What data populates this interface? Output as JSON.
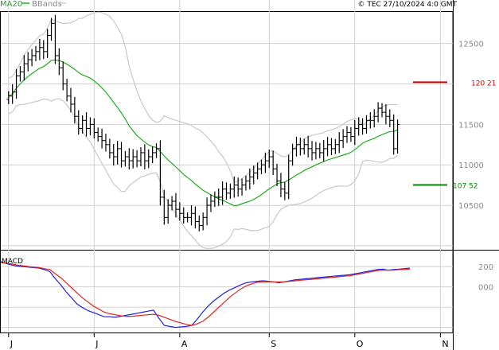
{
  "header": {
    "ma_label": "MA20",
    "bbands_label": "BBands",
    "copyright": "© TEC 27/10/2024 4:0 GMT"
  },
  "macd_label": "MACD",
  "colors": {
    "ma": "#22aa22",
    "bbands": "#c8c8c8",
    "price_bars": "#000000",
    "macd_line": "#2222dd",
    "signal_line": "#dd2222",
    "resistance": "#cc0000",
    "support": "#008800"
  },
  "chart_data": [
    {
      "type": "ohlc",
      "y_ticks": [
        10500,
        11000,
        11500,
        12500
      ],
      "y_tick_labels": [
        "10500",
        "11000",
        "11500",
        "12500"
      ],
      "x_month_labels": [
        "J",
        "J",
        "A",
        "S",
        "O",
        "N"
      ],
      "x_month_positions": [
        0,
        22,
        44,
        67,
        89,
        111
      ],
      "ylim": [
        9950,
        12900
      ],
      "xlim": [
        -2,
        114
      ],
      "levels": {
        "resistance": {
          "value": 12021,
          "label": "120 21"
        },
        "support": {
          "value": 10752,
          "label": "107 52"
        }
      },
      "closes": [
        11850,
        11900,
        12100,
        12150,
        12250,
        12300,
        12350,
        12400,
        12450,
        12400,
        12600,
        12750,
        12350,
        12200,
        12000,
        11850,
        11750,
        11600,
        11450,
        11550,
        11450,
        11500,
        11400,
        11350,
        11300,
        11250,
        11150,
        11100,
        11200,
        11050,
        11100,
        11050,
        11100,
        11050,
        11150,
        11050,
        11100,
        11150,
        11200,
        10600,
        10350,
        10500,
        10550,
        10450,
        10400,
        10350,
        10350,
        10400,
        10300,
        10250,
        10350,
        10500,
        10550,
        10600,
        10600,
        10700,
        10650,
        10700,
        10750,
        10700,
        10750,
        10800,
        10850,
        10900,
        10950,
        11000,
        11050,
        11100,
        10950,
        10800,
        10700,
        10650,
        11050,
        11200,
        11250,
        11200,
        11250,
        11200,
        11150,
        11200,
        11150,
        11200,
        11250,
        11200,
        11250,
        11300,
        11350,
        11400,
        11350,
        11450,
        11500,
        11450,
        11550,
        11550,
        11600,
        11700,
        11650,
        11600,
        11550,
        11200,
        11500
      ]
    },
    {
      "type": "line",
      "title": "",
      "y_ticks": [
        0,
        200
      ],
      "y_tick_labels": [
        "000",
        "200"
      ],
      "ylim": [
        -450,
        350
      ],
      "series": [
        {
          "key": "macd",
          "values": [
            250,
            230,
            215,
            205,
            200,
            195,
            190,
            185,
            170,
            150,
            80,
            20,
            -50,
            -110,
            -170,
            -205,
            -235,
            -255,
            -275,
            -295,
            -295,
            -300,
            -290,
            -280,
            -270,
            -260,
            -250,
            -240,
            -230,
            -310,
            -380,
            -390,
            -400,
            -395,
            -390,
            -380,
            -320,
            -250,
            -190,
            -140,
            -100,
            -60,
            -30,
            -5,
            20,
            40,
            50,
            55,
            60,
            55,
            50,
            40,
            50,
            60,
            70,
            75,
            80,
            85,
            90,
            95,
            100,
            105,
            110,
            115,
            120,
            130,
            140,
            150,
            160,
            170,
            175,
            165,
            170,
            175,
            180,
            185
          ]
        },
        {
          "key": "signal",
          "values": [
            240,
            235,
            225,
            215,
            208,
            200,
            195,
            190,
            180,
            170,
            130,
            90,
            40,
            -10,
            -60,
            -110,
            -150,
            -190,
            -220,
            -250,
            -265,
            -275,
            -285,
            -290,
            -290,
            -285,
            -280,
            -275,
            -270,
            -280,
            -300,
            -320,
            -340,
            -355,
            -370,
            -380,
            -365,
            -340,
            -300,
            -250,
            -200,
            -150,
            -100,
            -60,
            -20,
            10,
            30,
            45,
            50,
            50,
            50,
            50,
            50,
            55,
            60,
            65,
            70,
            75,
            80,
            85,
            90,
            95,
            100,
            105,
            110,
            120,
            130,
            140,
            150,
            160,
            165,
            165,
            165,
            170,
            170,
            175
          ]
        }
      ]
    }
  ]
}
